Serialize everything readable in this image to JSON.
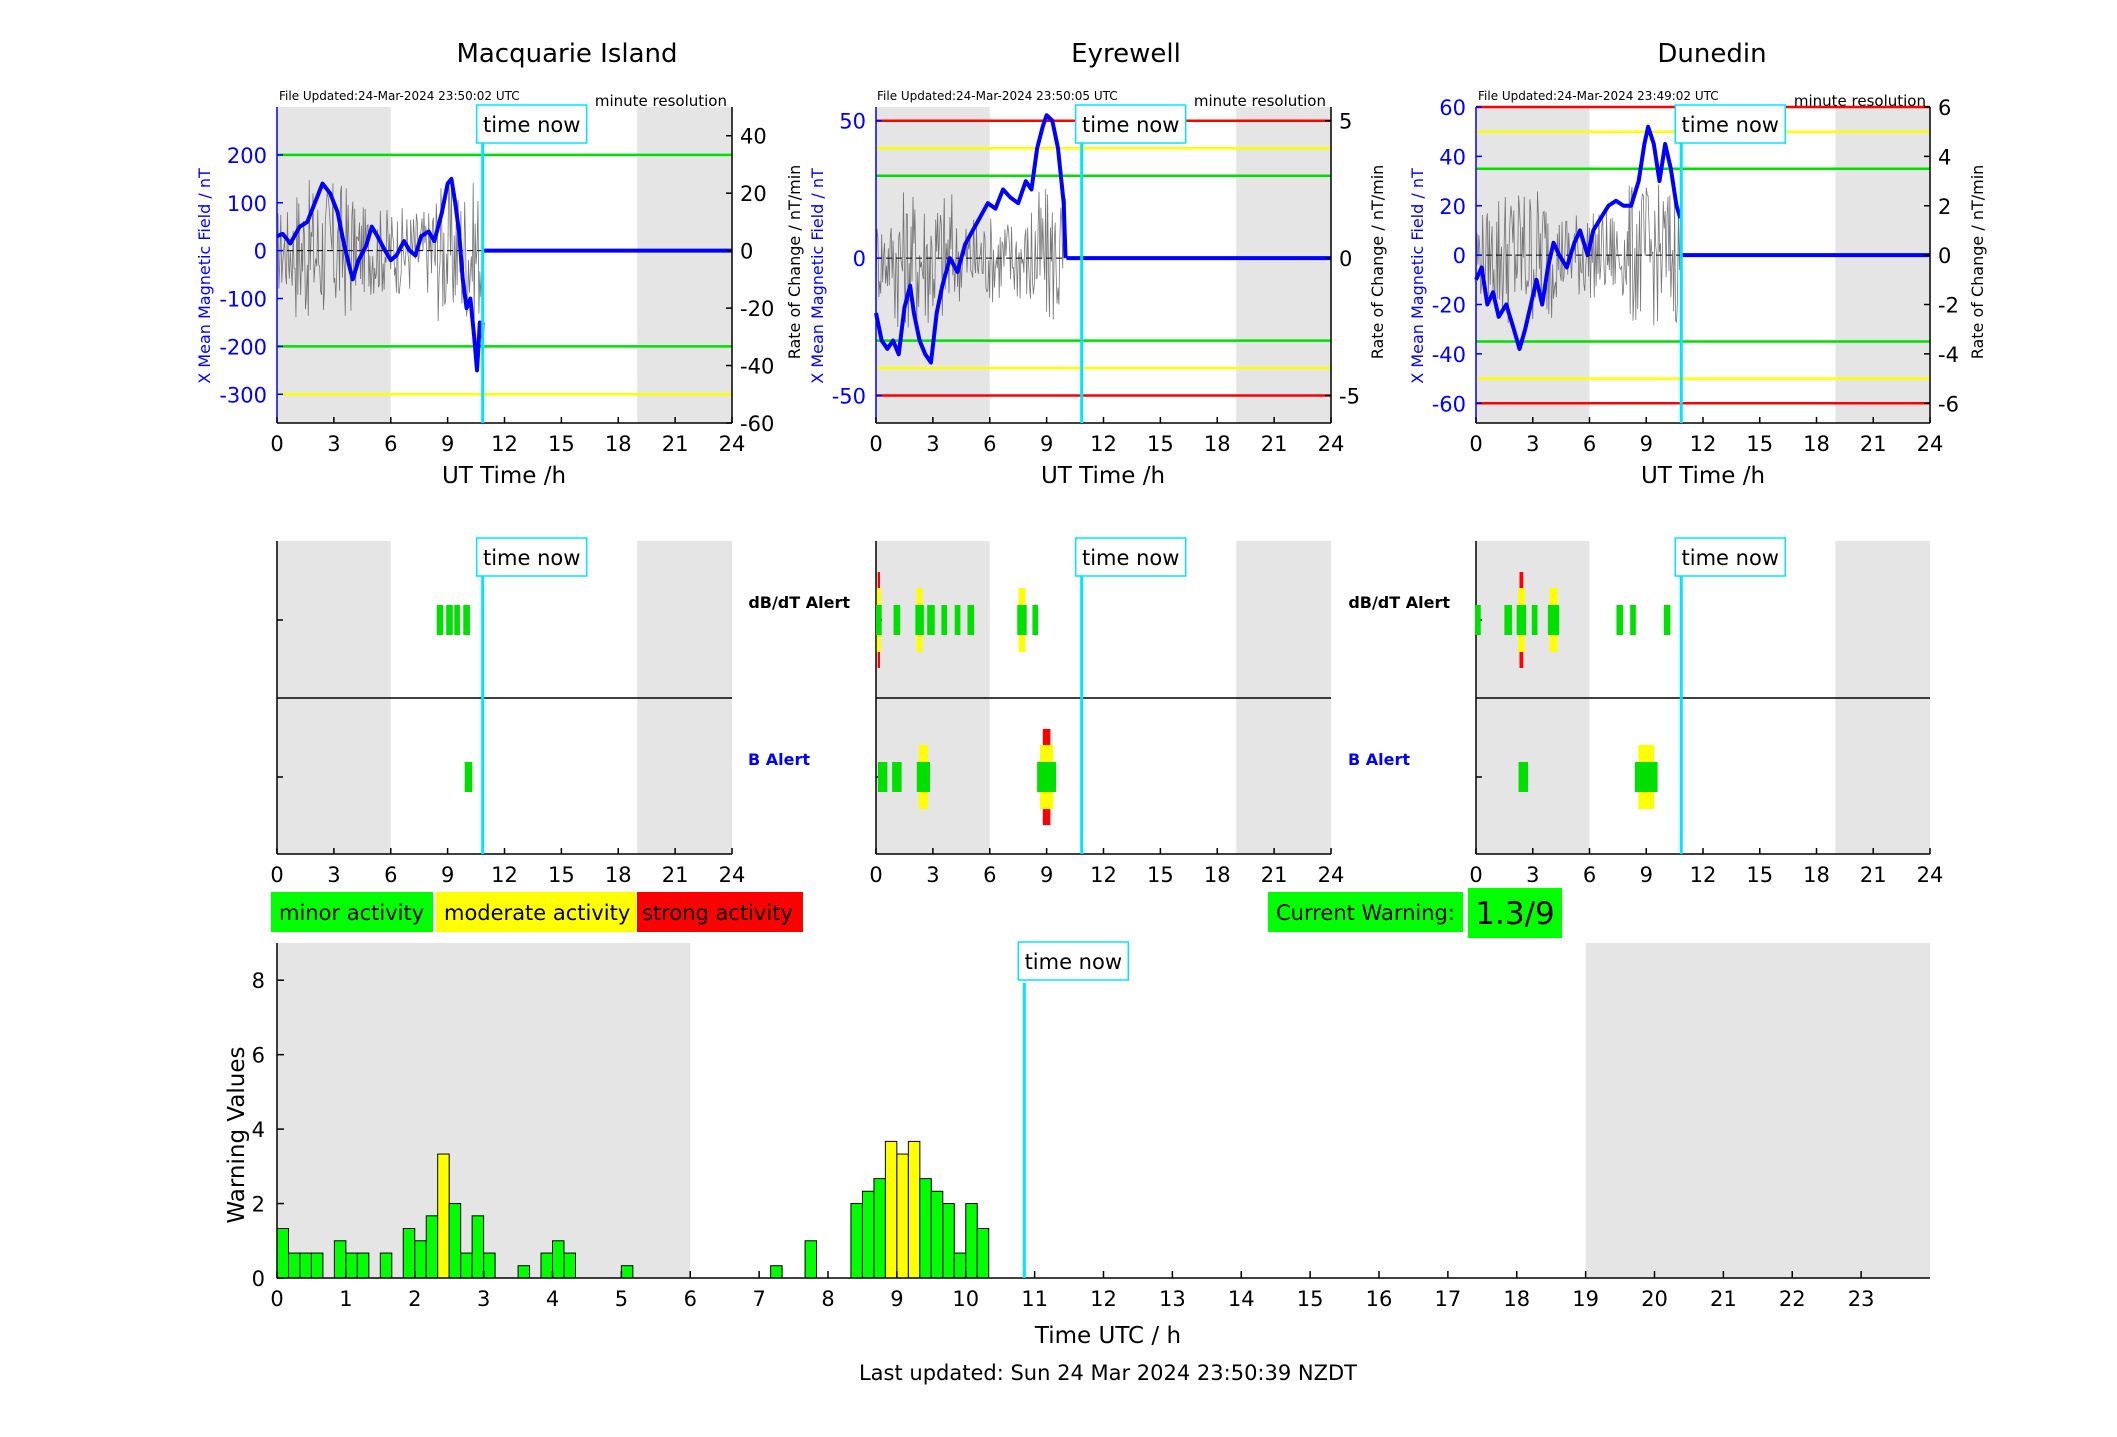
{
  "stations": [
    {
      "name": "Macquarie Island",
      "file_updated": "File Updated:24-Mar-2024 23:50:02 UTC",
      "resolution": "minute resolution",
      "ylabel": "X Mean Magnetic Field / nT",
      "ylabel_right": "Rate of Change / nT/min",
      "ylim": [
        -360,
        300
      ],
      "yticks": [
        -300,
        -200,
        -100,
        0,
        100,
        200
      ],
      "ylim_right": [
        -60,
        50
      ],
      "yticks_right": [
        -60,
        -40,
        -20,
        0,
        20,
        40
      ],
      "lines": [
        {
          "v": 200,
          "c": "#00e000"
        },
        {
          "v": -200,
          "c": "#00e000"
        },
        {
          "v": -300,
          "c": "#ffff00"
        }
      ],
      "field": [
        [
          0,
          30
        ],
        [
          0.3,
          35
        ],
        [
          0.7,
          15
        ],
        [
          1.2,
          50
        ],
        [
          1.6,
          60
        ],
        [
          2,
          100
        ],
        [
          2.4,
          140
        ],
        [
          2.8,
          120
        ],
        [
          3.2,
          80
        ],
        [
          3.5,
          20
        ],
        [
          3.8,
          -30
        ],
        [
          4,
          -60
        ],
        [
          4.3,
          -20
        ],
        [
          4.7,
          10
        ],
        [
          5,
          50
        ],
        [
          5.3,
          30
        ],
        [
          5.7,
          0
        ],
        [
          6,
          -20
        ],
        [
          6.3,
          -10
        ],
        [
          6.7,
          20
        ],
        [
          7,
          0
        ],
        [
          7.3,
          -10
        ],
        [
          7.6,
          30
        ],
        [
          8,
          40
        ],
        [
          8.3,
          20
        ],
        [
          8.7,
          80
        ],
        [
          9,
          140
        ],
        [
          9.2,
          150
        ],
        [
          9.4,
          100
        ],
        [
          9.6,
          40
        ],
        [
          9.8,
          -60
        ],
        [
          10,
          -120
        ],
        [
          10.2,
          -100
        ],
        [
          10.4,
          -180
        ],
        [
          10.55,
          -250
        ],
        [
          10.7,
          -150
        ],
        [
          10.8,
          -180
        ],
        [
          10.85,
          -150
        ]
      ],
      "flat_from": 10.9,
      "dbdt_alerts": [
        {
          "x": 8.6,
          "w": 0.35,
          "c": "#00e000",
          "h": 1
        },
        {
          "x": 9.1,
          "w": 0.35,
          "c": "#00e000",
          "h": 1
        },
        {
          "x": 9.5,
          "w": 0.3,
          "c": "#00e000",
          "h": 1
        },
        {
          "x": 10.0,
          "w": 0.35,
          "c": "#00e000",
          "h": 1
        }
      ],
      "b_alerts": [
        {
          "x": 10.1,
          "w": 0.4,
          "c": "#00e000",
          "h": 1
        }
      ]
    },
    {
      "name": "Eyrewell",
      "file_updated": "File Updated:24-Mar-2024 23:50:05 UTC",
      "resolution": "minute resolution",
      "ylabel": "X Mean Magnetic Field / nT",
      "ylabel_right": "Rate of Change / nT/min",
      "ylim": [
        -60,
        55
      ],
      "yticks": [
        -50,
        0,
        50
      ],
      "ylim_right": [
        -6,
        5.5
      ],
      "yticks_right": [
        -5,
        0,
        5
      ],
      "lines": [
        {
          "v": 50,
          "c": "#ff0000"
        },
        {
          "v": 40,
          "c": "#ffff00"
        },
        {
          "v": 30,
          "c": "#00e000"
        },
        {
          "v": -30,
          "c": "#00e000"
        },
        {
          "v": -40,
          "c": "#ffff00"
        },
        {
          "v": -50,
          "c": "#ff0000"
        }
      ],
      "field": [
        [
          0,
          -20
        ],
        [
          0.3,
          -30
        ],
        [
          0.6,
          -33
        ],
        [
          0.9,
          -30
        ],
        [
          1.2,
          -35
        ],
        [
          1.5,
          -18
        ],
        [
          1.8,
          -10
        ],
        [
          2,
          -20
        ],
        [
          2.3,
          -30
        ],
        [
          2.6,
          -35
        ],
        [
          2.9,
          -38
        ],
        [
          3.2,
          -20
        ],
        [
          3.5,
          -10
        ],
        [
          3.9,
          0
        ],
        [
          4.3,
          -5
        ],
        [
          4.7,
          5
        ],
        [
          5.1,
          10
        ],
        [
          5.5,
          15
        ],
        [
          5.9,
          20
        ],
        [
          6.3,
          18
        ],
        [
          6.7,
          25
        ],
        [
          7.1,
          22
        ],
        [
          7.5,
          20
        ],
        [
          7.9,
          28
        ],
        [
          8.2,
          25
        ],
        [
          8.5,
          40
        ],
        [
          8.8,
          48
        ],
        [
          9,
          52
        ],
        [
          9.3,
          50
        ],
        [
          9.6,
          40
        ],
        [
          9.9,
          20
        ],
        [
          10,
          0
        ]
      ],
      "flat_from": 10.05,
      "dbdt_alerts": [
        {
          "x": 0.15,
          "w": 0.3,
          "c": "#00e000",
          "h": 1,
          "outer": "#ff0000",
          "mid": "#ffff00"
        },
        {
          "x": 1.1,
          "w": 0.35,
          "c": "#00e000",
          "h": 1
        },
        {
          "x": 2.3,
          "w": 0.45,
          "c": "#00e000",
          "h": 1,
          "mid": "#ffff00"
        },
        {
          "x": 2.9,
          "w": 0.4,
          "c": "#00e000",
          "h": 1
        },
        {
          "x": 3.6,
          "w": 0.3,
          "c": "#00e000",
          "h": 1
        },
        {
          "x": 4.3,
          "w": 0.3,
          "c": "#00e000",
          "h": 1
        },
        {
          "x": 5.0,
          "w": 0.35,
          "c": "#00e000",
          "h": 1
        },
        {
          "x": 7.7,
          "w": 0.5,
          "c": "#00e000",
          "h": 1,
          "mid": "#ffff00"
        },
        {
          "x": 8.4,
          "w": 0.3,
          "c": "#00e000",
          "h": 1
        }
      ],
      "b_alerts": [
        {
          "x": 0.35,
          "w": 0.5,
          "c": "#00e000",
          "h": 1
        },
        {
          "x": 1.1,
          "w": 0.5,
          "c": "#00e000",
          "h": 1
        },
        {
          "x": 2.5,
          "w": 0.7,
          "c": "#00e000",
          "h": 1,
          "mid": "#ffff00"
        },
        {
          "x": 9.0,
          "w": 1.0,
          "c": "#00e000",
          "h": 1,
          "mid": "#ffff00",
          "outer": "#ff0000"
        }
      ]
    },
    {
      "name": "Dunedin",
      "file_updated": "File Updated:24-Mar-2024 23:49:02 UTC",
      "resolution": "minute resolution",
      "ylabel": "X Mean Magnetic Field / nT",
      "ylabel_right": "Rate of Change / nT/min",
      "ylim": [
        -68,
        60
      ],
      "yticks": [
        -60,
        -40,
        -20,
        0,
        20,
        40,
        60
      ],
      "ylim_right": [
        -6.8,
        6
      ],
      "yticks_right": [
        -6,
        -4,
        -2,
        0,
        2,
        4,
        6
      ],
      "lines": [
        {
          "v": 60,
          "c": "#ff0000"
        },
        {
          "v": 50,
          "c": "#ffff00"
        },
        {
          "v": 35,
          "c": "#00e000"
        },
        {
          "v": -35,
          "c": "#00e000"
        },
        {
          "v": -50,
          "c": "#ffff00"
        },
        {
          "v": -60,
          "c": "#ff0000"
        }
      ],
      "field": [
        [
          0,
          -10
        ],
        [
          0.3,
          -5
        ],
        [
          0.6,
          -20
        ],
        [
          0.9,
          -15
        ],
        [
          1.2,
          -25
        ],
        [
          1.6,
          -20
        ],
        [
          2,
          -30
        ],
        [
          2.3,
          -38
        ],
        [
          2.6,
          -30
        ],
        [
          2.9,
          -20
        ],
        [
          3.2,
          -10
        ],
        [
          3.5,
          -20
        ],
        [
          3.8,
          -5
        ],
        [
          4.1,
          5
        ],
        [
          4.4,
          0
        ],
        [
          4.8,
          -5
        ],
        [
          5.2,
          5
        ],
        [
          5.5,
          10
        ],
        [
          5.9,
          0
        ],
        [
          6.2,
          10
        ],
        [
          6.6,
          15
        ],
        [
          7,
          20
        ],
        [
          7.4,
          22
        ],
        [
          7.8,
          20
        ],
        [
          8.2,
          20
        ],
        [
          8.6,
          30
        ],
        [
          8.9,
          45
        ],
        [
          9.1,
          52
        ],
        [
          9.4,
          45
        ],
        [
          9.7,
          30
        ],
        [
          10,
          45
        ],
        [
          10.3,
          35
        ],
        [
          10.6,
          20
        ],
        [
          10.8,
          15
        ]
      ],
      "flat_from": 10.9,
      "dbdt_alerts": [
        {
          "x": 0.1,
          "w": 0.3,
          "c": "#00e000",
          "h": 1
        },
        {
          "x": 1.7,
          "w": 0.4,
          "c": "#00e000",
          "h": 1
        },
        {
          "x": 2.4,
          "w": 0.5,
          "c": "#00e000",
          "h": 1,
          "mid": "#ffff00",
          "outer": "#ff0000"
        },
        {
          "x": 3.1,
          "w": 0.3,
          "c": "#00e000",
          "h": 1
        },
        {
          "x": 4.1,
          "w": 0.6,
          "c": "#00e000",
          "h": 1,
          "mid": "#ffff00"
        },
        {
          "x": 7.6,
          "w": 0.35,
          "c": "#00e000",
          "h": 1
        },
        {
          "x": 8.3,
          "w": 0.3,
          "c": "#00e000",
          "h": 1
        },
        {
          "x": 10.1,
          "w": 0.35,
          "c": "#00e000",
          "h": 1
        }
      ],
      "b_alerts": [
        {
          "x": 2.5,
          "w": 0.5,
          "c": "#00e000",
          "h": 1
        },
        {
          "x": 9.0,
          "w": 1.2,
          "c": "#00e000",
          "h": 1,
          "mid": "#ffff00"
        }
      ]
    }
  ],
  "top_xlabel": "UT Time /h",
  "top_xticks": [
    0,
    3,
    6,
    9,
    12,
    15,
    18,
    21,
    24
  ],
  "time_now_label": "time now",
  "time_now": 10.85,
  "night_shade": [
    [
      0,
      6
    ],
    [
      19,
      24
    ]
  ],
  "alert_labels": {
    "dbdt": "dB/dT Alert",
    "b": "B Alert"
  },
  "legend": [
    {
      "label": "minor activity",
      "color": "#00ff00"
    },
    {
      "label": "moderate activity",
      "color": "#ffff00"
    },
    {
      "label": "strong activity",
      "color": "#ff0000"
    }
  ],
  "current_warning": {
    "label": "Current Warning:",
    "value": "1.3/9"
  },
  "chart_data": {
    "type": "bar",
    "xlabel": "Time UTC / h",
    "ylabel": "Warning Values",
    "ylim": [
      0,
      9
    ],
    "xlim": [
      0,
      24
    ],
    "yticks": [
      0,
      2,
      4,
      6,
      8
    ],
    "xticks": [
      0,
      1,
      2,
      3,
      4,
      5,
      6,
      7,
      8,
      9,
      10,
      11,
      12,
      13,
      14,
      15,
      16,
      17,
      18,
      19,
      20,
      21,
      22,
      23
    ],
    "bar_width_h": 0.1667,
    "bars": [
      {
        "x": 0.0,
        "v": 1.33,
        "c": "#00ff00"
      },
      {
        "x": 0.167,
        "v": 0.67,
        "c": "#00ff00"
      },
      {
        "x": 0.333,
        "v": 0.67,
        "c": "#00ff00"
      },
      {
        "x": 0.5,
        "v": 0.67,
        "c": "#00ff00"
      },
      {
        "x": 0.833,
        "v": 1.0,
        "c": "#00ff00"
      },
      {
        "x": 1.0,
        "v": 0.67,
        "c": "#00ff00"
      },
      {
        "x": 1.167,
        "v": 0.67,
        "c": "#00ff00"
      },
      {
        "x": 1.5,
        "v": 0.67,
        "c": "#00ff00"
      },
      {
        "x": 1.833,
        "v": 1.33,
        "c": "#00ff00"
      },
      {
        "x": 2.0,
        "v": 1.0,
        "c": "#00ff00"
      },
      {
        "x": 2.167,
        "v": 1.67,
        "c": "#00ff00"
      },
      {
        "x": 2.333,
        "v": 3.33,
        "c": "#ffff00"
      },
      {
        "x": 2.5,
        "v": 2.0,
        "c": "#00ff00"
      },
      {
        "x": 2.667,
        "v": 0.67,
        "c": "#00ff00"
      },
      {
        "x": 2.833,
        "v": 1.67,
        "c": "#00ff00"
      },
      {
        "x": 3.0,
        "v": 0.67,
        "c": "#00ff00"
      },
      {
        "x": 3.5,
        "v": 0.33,
        "c": "#00ff00"
      },
      {
        "x": 3.833,
        "v": 0.67,
        "c": "#00ff00"
      },
      {
        "x": 4.0,
        "v": 1.0,
        "c": "#00ff00"
      },
      {
        "x": 4.167,
        "v": 0.67,
        "c": "#00ff00"
      },
      {
        "x": 5.0,
        "v": 0.33,
        "c": "#00ff00"
      },
      {
        "x": 7.167,
        "v": 0.33,
        "c": "#00ff00"
      },
      {
        "x": 7.667,
        "v": 1.0,
        "c": "#00ff00"
      },
      {
        "x": 8.333,
        "v": 2.0,
        "c": "#00ff00"
      },
      {
        "x": 8.5,
        "v": 2.33,
        "c": "#00ff00"
      },
      {
        "x": 8.667,
        "v": 2.67,
        "c": "#00ff00"
      },
      {
        "x": 8.833,
        "v": 3.67,
        "c": "#ffff00"
      },
      {
        "x": 9.0,
        "v": 3.33,
        "c": "#ffff00"
      },
      {
        "x": 9.167,
        "v": 3.67,
        "c": "#ffff00"
      },
      {
        "x": 9.333,
        "v": 2.67,
        "c": "#00ff00"
      },
      {
        "x": 9.5,
        "v": 2.33,
        "c": "#00ff00"
      },
      {
        "x": 9.667,
        "v": 2.0,
        "c": "#00ff00"
      },
      {
        "x": 9.833,
        "v": 0.67,
        "c": "#00ff00"
      },
      {
        "x": 10.0,
        "v": 2.0,
        "c": "#00ff00"
      },
      {
        "x": 10.167,
        "v": 1.33,
        "c": "#00ff00"
      }
    ],
    "night_shade": [
      [
        0,
        6
      ],
      [
        19,
        24
      ]
    ]
  },
  "footer": "Last updated: Sun 24 Mar 2024 23:50:39 NZDT"
}
